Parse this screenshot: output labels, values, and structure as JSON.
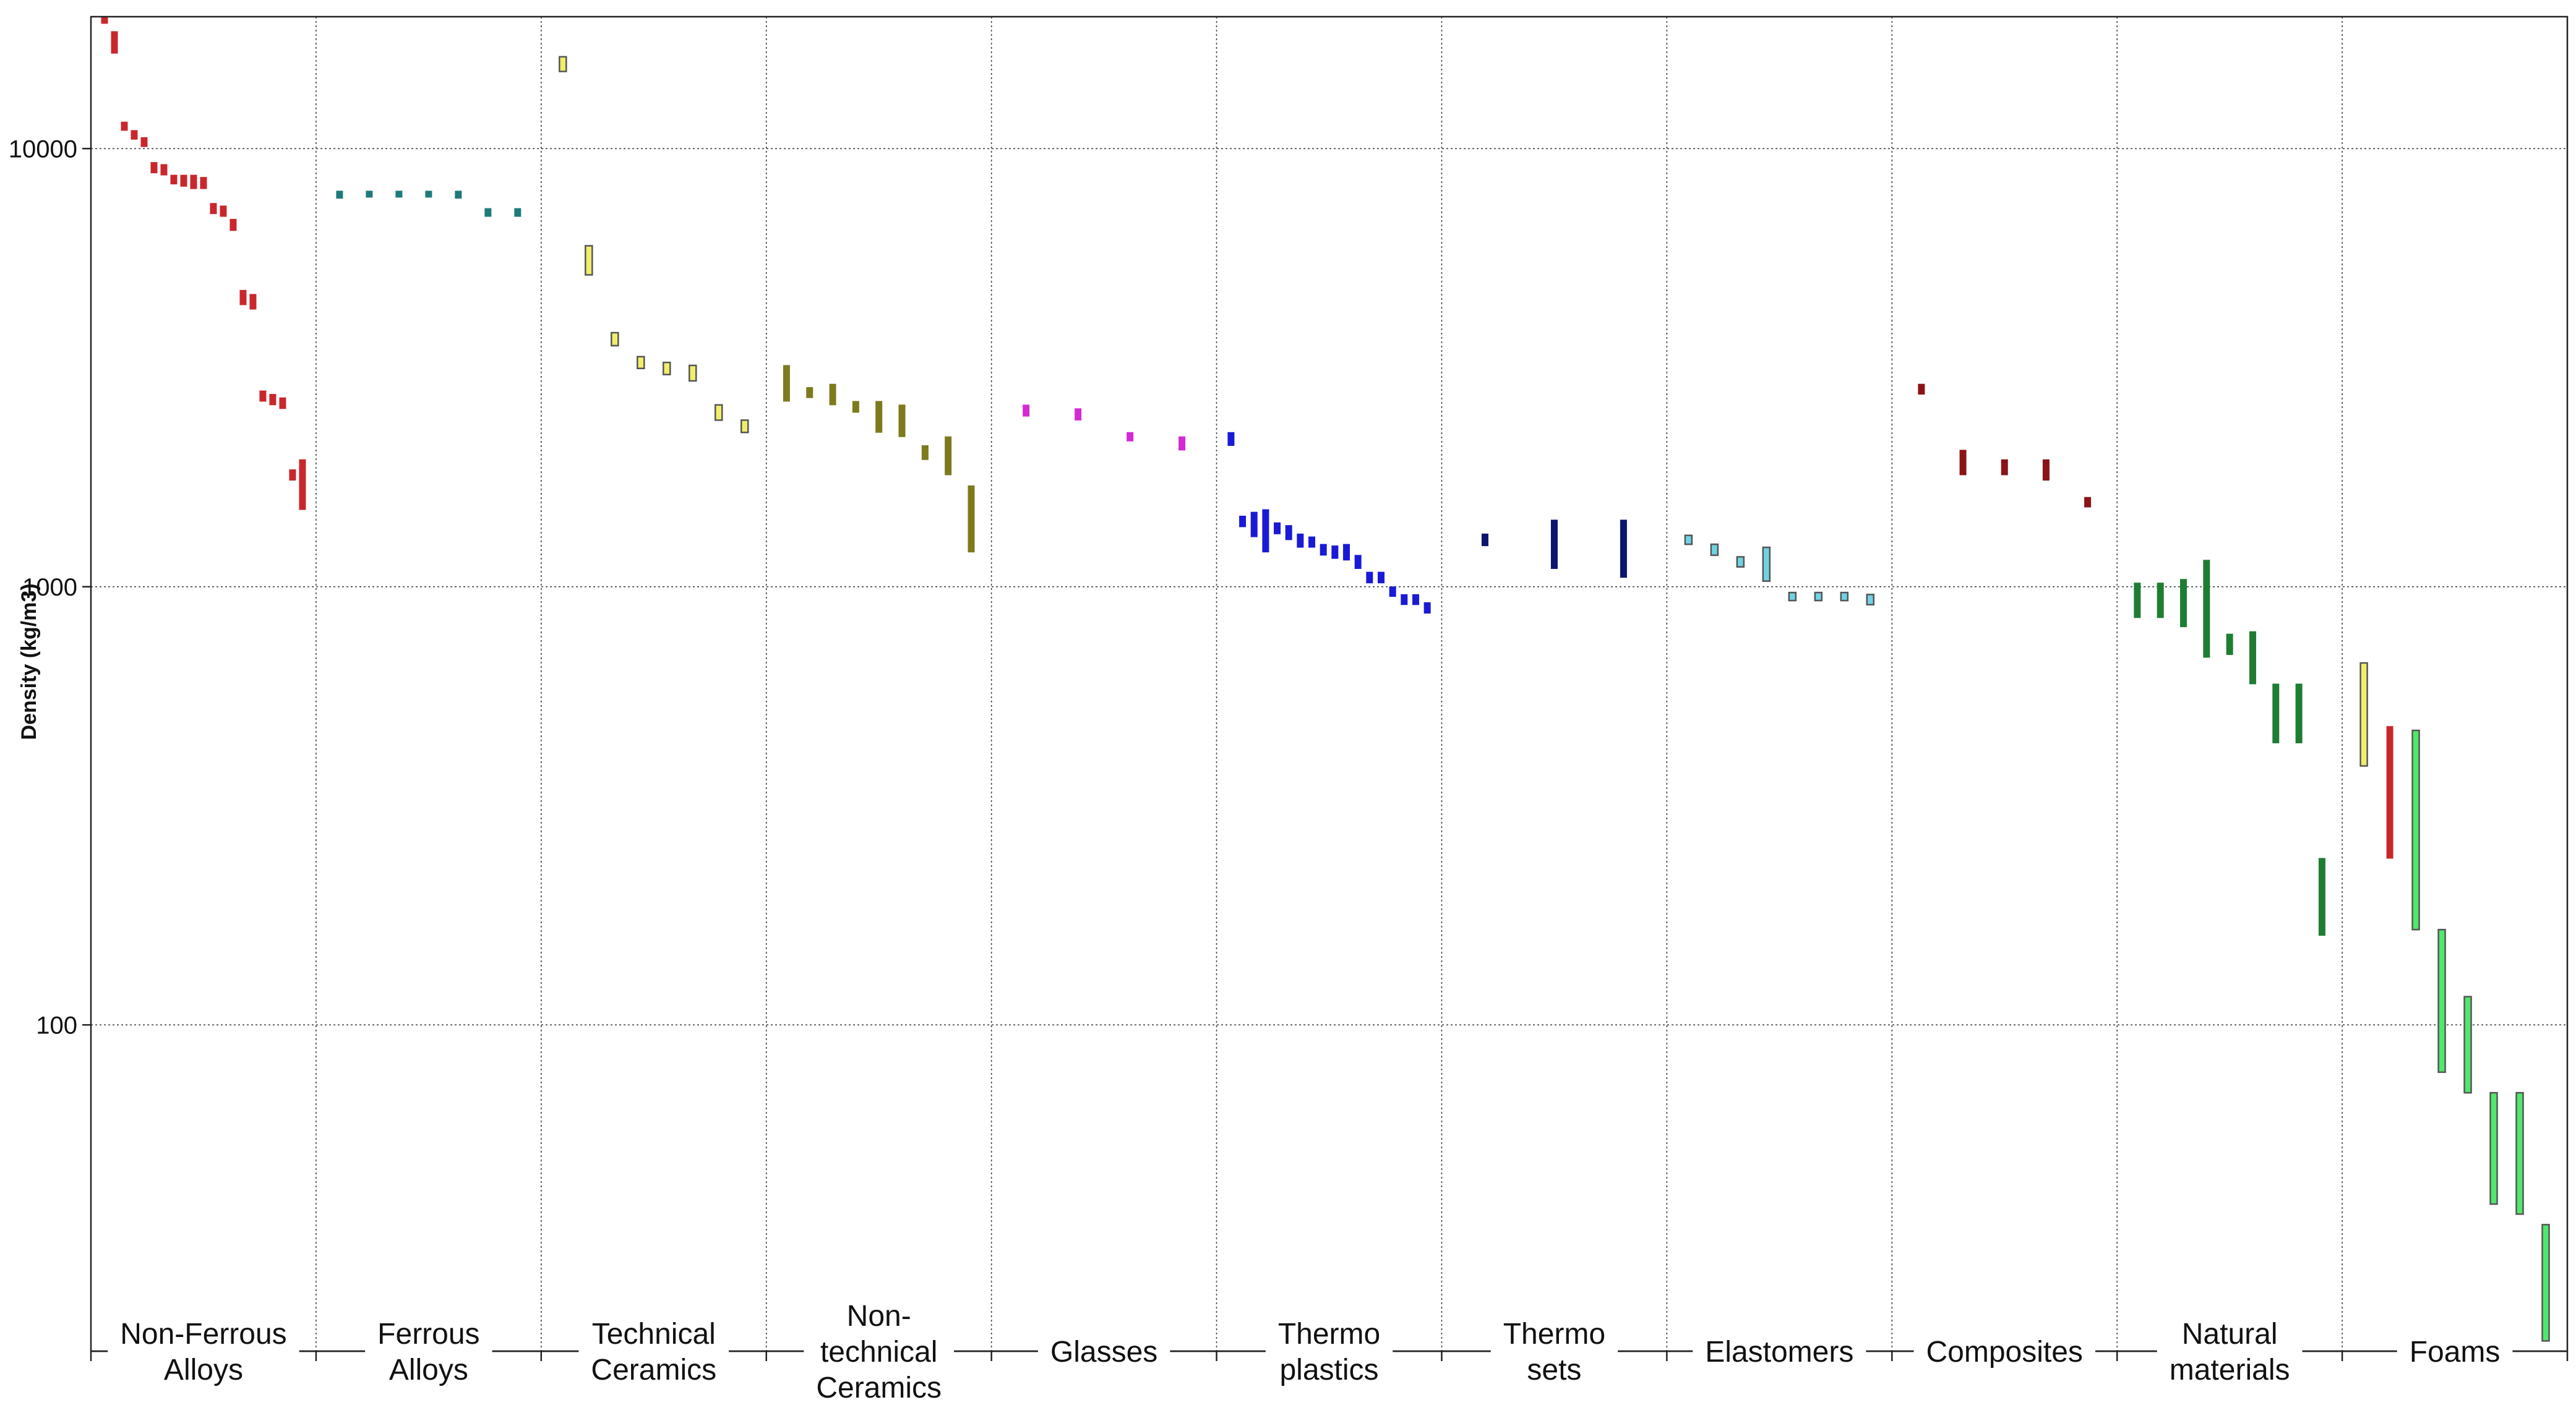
{
  "chart_data": {
    "type": "range-bar",
    "title": "",
    "xlabel": "",
    "ylabel": "Density (kg/m3)",
    "yscale": "log",
    "ylim": [
      18,
      20000
    ],
    "yticks": [
      {
        "value": 100,
        "label": "100"
      },
      {
        "value": 1000,
        "label": "1000"
      },
      {
        "value": 10000,
        "label": "10000"
      }
    ],
    "grid": true,
    "categories": [
      {
        "name": "Non-Ferrous Alloys",
        "lines": [
          "Non-Ferrous",
          "Alloys"
        ]
      },
      {
        "name": "Ferrous Alloys",
        "lines": [
          "Ferrous",
          "Alloys"
        ]
      },
      {
        "name": "Technical Ceramics",
        "lines": [
          "Technical",
          "Ceramics"
        ]
      },
      {
        "name": "Non-technical Ceramics",
        "lines": [
          "Non-",
          "technical",
          "Ceramics"
        ]
      },
      {
        "name": "Glasses",
        "lines": [
          "Glasses"
        ]
      },
      {
        "name": "Thermo plastics",
        "lines": [
          "Thermo",
          "plastics"
        ]
      },
      {
        "name": "Thermo sets",
        "lines": [
          "Thermo",
          "sets"
        ]
      },
      {
        "name": "Elastomers",
        "lines": [
          "Elastomers"
        ]
      },
      {
        "name": "Composites",
        "lines": [
          "Composites"
        ]
      },
      {
        "name": "Natural materials",
        "lines": [
          "Natural",
          "materials"
        ]
      },
      {
        "name": "Foams",
        "lines": [
          "Foams"
        ]
      }
    ],
    "series": [
      {
        "category": "Non-Ferrous Alloys",
        "color": "#c8282d",
        "style": "filled",
        "ranges": [
          [
            19300,
            20000
          ],
          [
            16500,
            18500
          ],
          [
            11000,
            11500
          ],
          [
            10500,
            11000
          ],
          [
            10100,
            10600
          ],
          [
            8800,
            9300
          ],
          [
            8700,
            9200
          ],
          [
            8300,
            8700
          ],
          [
            8200,
            8700
          ],
          [
            8100,
            8700
          ],
          [
            8100,
            8600
          ],
          [
            7100,
            7500
          ],
          [
            7000,
            7400
          ],
          [
            6500,
            6900
          ],
          [
            4400,
            4750
          ],
          [
            4300,
            4650
          ],
          [
            2650,
            2800
          ],
          [
            2600,
            2750
          ],
          [
            2550,
            2700
          ],
          [
            1750,
            1850
          ],
          [
            1500,
            1950
          ]
        ]
      },
      {
        "category": "Ferrous Alloys",
        "color": "#1f7a7a",
        "style": "filled",
        "ranges": [
          [
            7700,
            8000
          ],
          [
            7750,
            8000
          ],
          [
            7750,
            8000
          ],
          [
            7750,
            8000
          ],
          [
            7700,
            8000
          ],
          [
            7000,
            7300
          ],
          [
            7000,
            7300
          ]
        ]
      },
      {
        "category": "Technical Ceramics",
        "color": "#f0ee6a",
        "style": "outline",
        "ranges": [
          [
            15000,
            16200
          ],
          [
            5150,
            6000
          ],
          [
            3550,
            3800
          ],
          [
            3150,
            3350
          ],
          [
            3050,
            3250
          ],
          [
            2950,
            3200
          ],
          [
            2400,
            2600
          ],
          [
            2250,
            2400
          ]
        ]
      },
      {
        "category": "Non-technical Ceramics",
        "color": "#7d7a1e",
        "style": "filled",
        "ranges": [
          [
            2650,
            3200
          ],
          [
            2700,
            2850
          ],
          [
            2600,
            2900
          ],
          [
            2500,
            2650
          ],
          [
            2250,
            2650
          ],
          [
            2200,
            2600
          ],
          [
            1950,
            2100
          ],
          [
            1800,
            2200
          ],
          [
            1200,
            1700
          ]
        ]
      },
      {
        "category": "Glasses",
        "color": "#d42ad4",
        "style": "filled",
        "ranges": [
          [
            2450,
            2600
          ],
          [
            2400,
            2550
          ],
          [
            2150,
            2250
          ],
          [
            2050,
            2200
          ]
        ]
      },
      {
        "category": "Thermo plastics",
        "color": "#1a1ad6",
        "style": "filled",
        "ranges": [
          [
            2100,
            2250
          ],
          [
            1370,
            1450
          ],
          [
            1300,
            1480
          ],
          [
            1200,
            1500
          ],
          [
            1320,
            1400
          ],
          [
            1280,
            1380
          ],
          [
            1230,
            1320
          ],
          [
            1230,
            1300
          ],
          [
            1180,
            1250
          ],
          [
            1160,
            1240
          ],
          [
            1150,
            1250
          ],
          [
            1100,
            1180
          ],
          [
            1020,
            1080
          ],
          [
            1020,
            1080
          ],
          [
            950,
            1000
          ],
          [
            910,
            960
          ],
          [
            910,
            960
          ],
          [
            870,
            920
          ]
        ]
      },
      {
        "category": "Thermo sets",
        "color": "#0c1470",
        "style": "filled",
        "ranges": [
          [
            1240,
            1320
          ],
          [
            1100,
            1420
          ],
          [
            1050,
            1420
          ]
        ]
      },
      {
        "category": "Elastomers",
        "color": "#6fd3e3",
        "style": "outline",
        "ranges": [
          [
            1250,
            1310
          ],
          [
            1180,
            1250
          ],
          [
            1110,
            1170
          ],
          [
            1030,
            1230
          ],
          [
            930,
            970
          ],
          [
            930,
            970
          ],
          [
            930,
            970
          ],
          [
            910,
            960
          ]
        ]
      },
      {
        "category": "Composites",
        "color": "#8a1418",
        "style": "filled",
        "ranges": [
          [
            2750,
            2900
          ],
          [
            1800,
            2050
          ],
          [
            1800,
            1950
          ],
          [
            1750,
            1950
          ],
          [
            1520,
            1600
          ]
        ]
      },
      {
        "category": "Natural materials",
        "color": "#1e7d33",
        "style": "filled",
        "ranges": [
          [
            850,
            1020
          ],
          [
            850,
            1020
          ],
          [
            810,
            1040
          ],
          [
            690,
            1150
          ],
          [
            700,
            780
          ],
          [
            600,
            790
          ],
          [
            440,
            600
          ],
          [
            440,
            600
          ],
          [
            160,
            240
          ]
        ]
      },
      {
        "category": "Foams",
        "color": "mixed",
        "style": "outline",
        "bars": [
          {
            "range": [
              390,
              670
            ],
            "color": "#f0ee6a",
            "style": "outline"
          },
          {
            "range": [
              240,
              480
            ],
            "color": "#c8282d",
            "style": "filled"
          },
          {
            "range": [
              165,
              470
            ],
            "color": "#4fe86c",
            "style": "outline"
          },
          {
            "range": [
              78,
              165
            ],
            "color": "#4fe86c",
            "style": "outline"
          },
          {
            "range": [
              70,
              116
            ],
            "color": "#4fe86c",
            "style": "outline"
          },
          {
            "range": [
              39,
              70
            ],
            "color": "#4fe86c",
            "style": "outline"
          },
          {
            "range": [
              37,
              70
            ],
            "color": "#4fe86c",
            "style": "outline"
          },
          {
            "range": [
              19,
              35
            ],
            "color": "#4fe86c",
            "style": "outline"
          }
        ]
      }
    ]
  }
}
